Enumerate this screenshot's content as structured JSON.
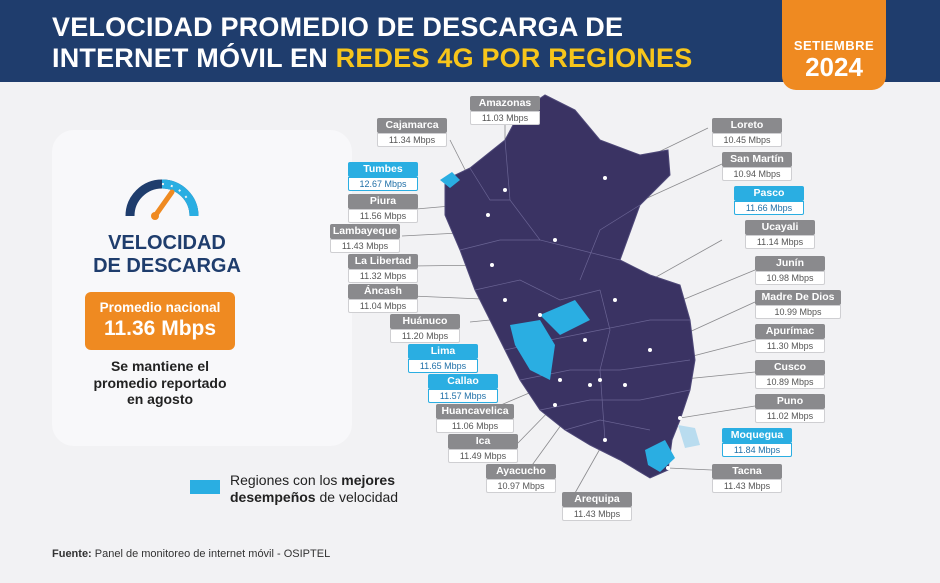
{
  "header": {
    "title_line1": "VELOCIDAD PROMEDIO DE DESCARGA DE",
    "title_line2_a": "INTERNET MÓVIL EN ",
    "title_line2_b": "REDES 4G POR REGIONES",
    "month": "SETIEMBRE",
    "year": "2024"
  },
  "panel": {
    "heading_1": "VELOCIDAD",
    "heading_2": "DE DESCARGA",
    "avg_label": "Promedio nacional",
    "avg_value": "11.36 Mbps",
    "note_1": "Se mantiene el",
    "note_2": "promedio reportado",
    "note_3": "en agosto"
  },
  "legend": {
    "text_a": "Regiones con los ",
    "text_b": "mejores",
    "text_c": "desempeños",
    "text_d": " de velocidad"
  },
  "source": {
    "label": "Fuente:",
    "text": " Panel de monitoreo de internet móvil - OSIPTEL"
  },
  "colors": {
    "header": "#1f3d6d",
    "accent": "#ef8a21",
    "map": "#3a3363",
    "best": "#2aaee2",
    "label": "#8a8a8d"
  },
  "regions": [
    {
      "name": "Amazonas",
      "value": "11.03 Mbps",
      "best": false
    },
    {
      "name": "Cajamarca",
      "value": "11.34 Mbps",
      "best": false
    },
    {
      "name": "Tumbes",
      "value": "12.67 Mbps",
      "best": true
    },
    {
      "name": "Piura",
      "value": "11.56 Mbps",
      "best": false
    },
    {
      "name": "Lambayeque",
      "value": "11.43 Mbps",
      "best": false
    },
    {
      "name": "La Libertad",
      "value": "11.32 Mbps",
      "best": false
    },
    {
      "name": "Áncash",
      "value": "11.04 Mbps",
      "best": false
    },
    {
      "name": "Huánuco",
      "value": "11.20 Mbps",
      "best": false
    },
    {
      "name": "Lima",
      "value": "11.65 Mbps",
      "best": true
    },
    {
      "name": "Callao",
      "value": "11.57 Mbps",
      "best": true
    },
    {
      "name": "Huancavelica",
      "value": "11.06 Mbps",
      "best": false
    },
    {
      "name": "Ica",
      "value": "11.49 Mbps",
      "best": false
    },
    {
      "name": "Ayacucho",
      "value": "10.97 Mbps",
      "best": false
    },
    {
      "name": "Arequipa",
      "value": "11.43 Mbps",
      "best": false
    },
    {
      "name": "Loreto",
      "value": "10.45 Mbps",
      "best": false
    },
    {
      "name": "San Martín",
      "value": "10.94 Mbps",
      "best": false
    },
    {
      "name": "Pasco",
      "value": "11.66 Mbps",
      "best": true
    },
    {
      "name": "Ucayali",
      "value": "11.14 Mbps",
      "best": false
    },
    {
      "name": "Junín",
      "value": "10.98 Mbps",
      "best": false
    },
    {
      "name": "Madre De Dios",
      "value": "10.99 Mbps",
      "best": false
    },
    {
      "name": "Apurímac",
      "value": "11.30 Mbps",
      "best": false
    },
    {
      "name": "Cusco",
      "value": "10.89 Mbps",
      "best": false
    },
    {
      "name": "Puno",
      "value": "11.02 Mbps",
      "best": false
    },
    {
      "name": "Moquegua",
      "value": "11.84 Mbps",
      "best": true
    },
    {
      "name": "Tacna",
      "value": "11.43 Mbps",
      "best": false
    }
  ]
}
